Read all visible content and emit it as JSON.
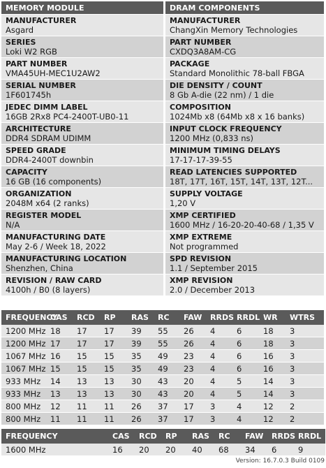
{
  "headers": {
    "left": "MEMORY MODULE",
    "right": "DRAM COMPONENTS"
  },
  "rows": [
    {
      "left": {
        "label": "MANUFACTURER",
        "value": "Asgard"
      },
      "right": {
        "label": "MANUFACTURER",
        "value": "ChangXin Memory Technologies"
      }
    },
    {
      "left": {
        "label": "SERIES",
        "value": "Loki W2 RGB"
      },
      "right": {
        "label": "PART NUMBER",
        "value": "CXDQ3A8AM-CG"
      }
    },
    {
      "left": {
        "label": "PART NUMBER",
        "value": "VMA45UH-MEC1U2AW2"
      },
      "right": {
        "label": "PACKAGE",
        "value": "Standard Monolithic 78-ball FBGA"
      }
    },
    {
      "left": {
        "label": "SERIAL NUMBER",
        "value": "1F601745h"
      },
      "right": {
        "label": "DIE DENSITY / COUNT",
        "value": "8 Gb A-die (22 nm) / 1 die"
      }
    },
    {
      "left": {
        "label": "JEDEC DIMM LABEL",
        "value": "16GB 2Rx8 PC4-2400T-UB0-11"
      },
      "right": {
        "label": "COMPOSITION",
        "value": "1024Mb x8 (64Mb x8 x 16 banks)"
      }
    },
    {
      "left": {
        "label": "ARCHITECTURE",
        "value": "DDR4 SDRAM UDIMM"
      },
      "right": {
        "label": "INPUT CLOCK FREQUENCY",
        "value": "1200 MHz (0,833 ns)"
      }
    },
    {
      "left": {
        "label": "SPEED GRADE",
        "value": "DDR4-2400T downbin"
      },
      "right": {
        "label": "MINIMUM TIMING DELAYS",
        "value": "17-17-17-39-55"
      }
    },
    {
      "left": {
        "label": "CAPACITY",
        "value": "16 GB (16 components)"
      },
      "right": {
        "label": "READ LATENCIES SUPPORTED",
        "value": "18T, 17T, 16T, 15T, 14T, 13T, 12T..."
      }
    },
    {
      "left": {
        "label": "ORGANIZATION",
        "value": "2048M x64 (2 ranks)"
      },
      "right": {
        "label": "SUPPLY VOLTAGE",
        "value": "1,20 V"
      }
    },
    {
      "left": {
        "label": "REGISTER MODEL",
        "value": "N/A"
      },
      "right": {
        "label": "XMP CERTIFIED",
        "value": "1600 MHz / 16-20-20-40-68 / 1,35 V"
      }
    },
    {
      "left": {
        "label": "MANUFACTURING DATE",
        "value": "May 2-6 / Week 18, 2022"
      },
      "right": {
        "label": "XMP EXTREME",
        "value": "Not programmed"
      }
    },
    {
      "left": {
        "label": "MANUFACTURING LOCATION",
        "value": "Shenzhen, China"
      },
      "right": {
        "label": "SPD REVISION",
        "value": "1.1 / September 2015"
      }
    },
    {
      "left": {
        "label": "REVISION / RAW CARD",
        "value": "4100h / B0 (8 layers)"
      },
      "right": {
        "label": "XMP REVISION",
        "value": "2.0 / December 2013"
      }
    }
  ],
  "timings": {
    "columns": [
      "FREQUENCY",
      "CAS",
      "RCD",
      "RP",
      "RAS",
      "RC",
      "FAW",
      "RRDS",
      "RRDL",
      "WR",
      "WTRS"
    ],
    "rows": [
      [
        "1200 MHz",
        "18",
        "17",
        "17",
        "39",
        "55",
        "26",
        "4",
        "6",
        "18",
        "3"
      ],
      [
        "1200 MHz",
        "17",
        "17",
        "17",
        "39",
        "55",
        "26",
        "4",
        "6",
        "18",
        "3"
      ],
      [
        "1067 MHz",
        "16",
        "15",
        "15",
        "35",
        "49",
        "23",
        "4",
        "6",
        "16",
        "3"
      ],
      [
        "1067 MHz",
        "15",
        "15",
        "15",
        "35",
        "49",
        "23",
        "4",
        "6",
        "16",
        "3"
      ],
      [
        "933 MHz",
        "14",
        "13",
        "13",
        "30",
        "43",
        "20",
        "4",
        "5",
        "14",
        "3"
      ],
      [
        "933 MHz",
        "13",
        "13",
        "13",
        "30",
        "43",
        "20",
        "4",
        "5",
        "14",
        "3"
      ],
      [
        "800 MHz",
        "12",
        "11",
        "11",
        "26",
        "37",
        "17",
        "3",
        "4",
        "12",
        "2"
      ],
      [
        "800 MHz",
        "11",
        "11",
        "11",
        "26",
        "37",
        "17",
        "3",
        "4",
        "12",
        "2"
      ]
    ]
  },
  "xmp": {
    "columns": [
      "FREQUENCY",
      "CAS",
      "RCD",
      "RP",
      "RAS",
      "RC",
      "FAW",
      "RRDS",
      "RRDL"
    ],
    "rows": [
      [
        "1600 MHz",
        "16",
        "20",
        "20",
        "40",
        "68",
        "34",
        "6",
        "9"
      ]
    ]
  },
  "version": "Version: 16.7.0.3 Build 0109",
  "colors": {
    "header_bg": "#5a5a5a",
    "row_light": "#e6e6e6",
    "row_dark": "#d2d2d2"
  }
}
